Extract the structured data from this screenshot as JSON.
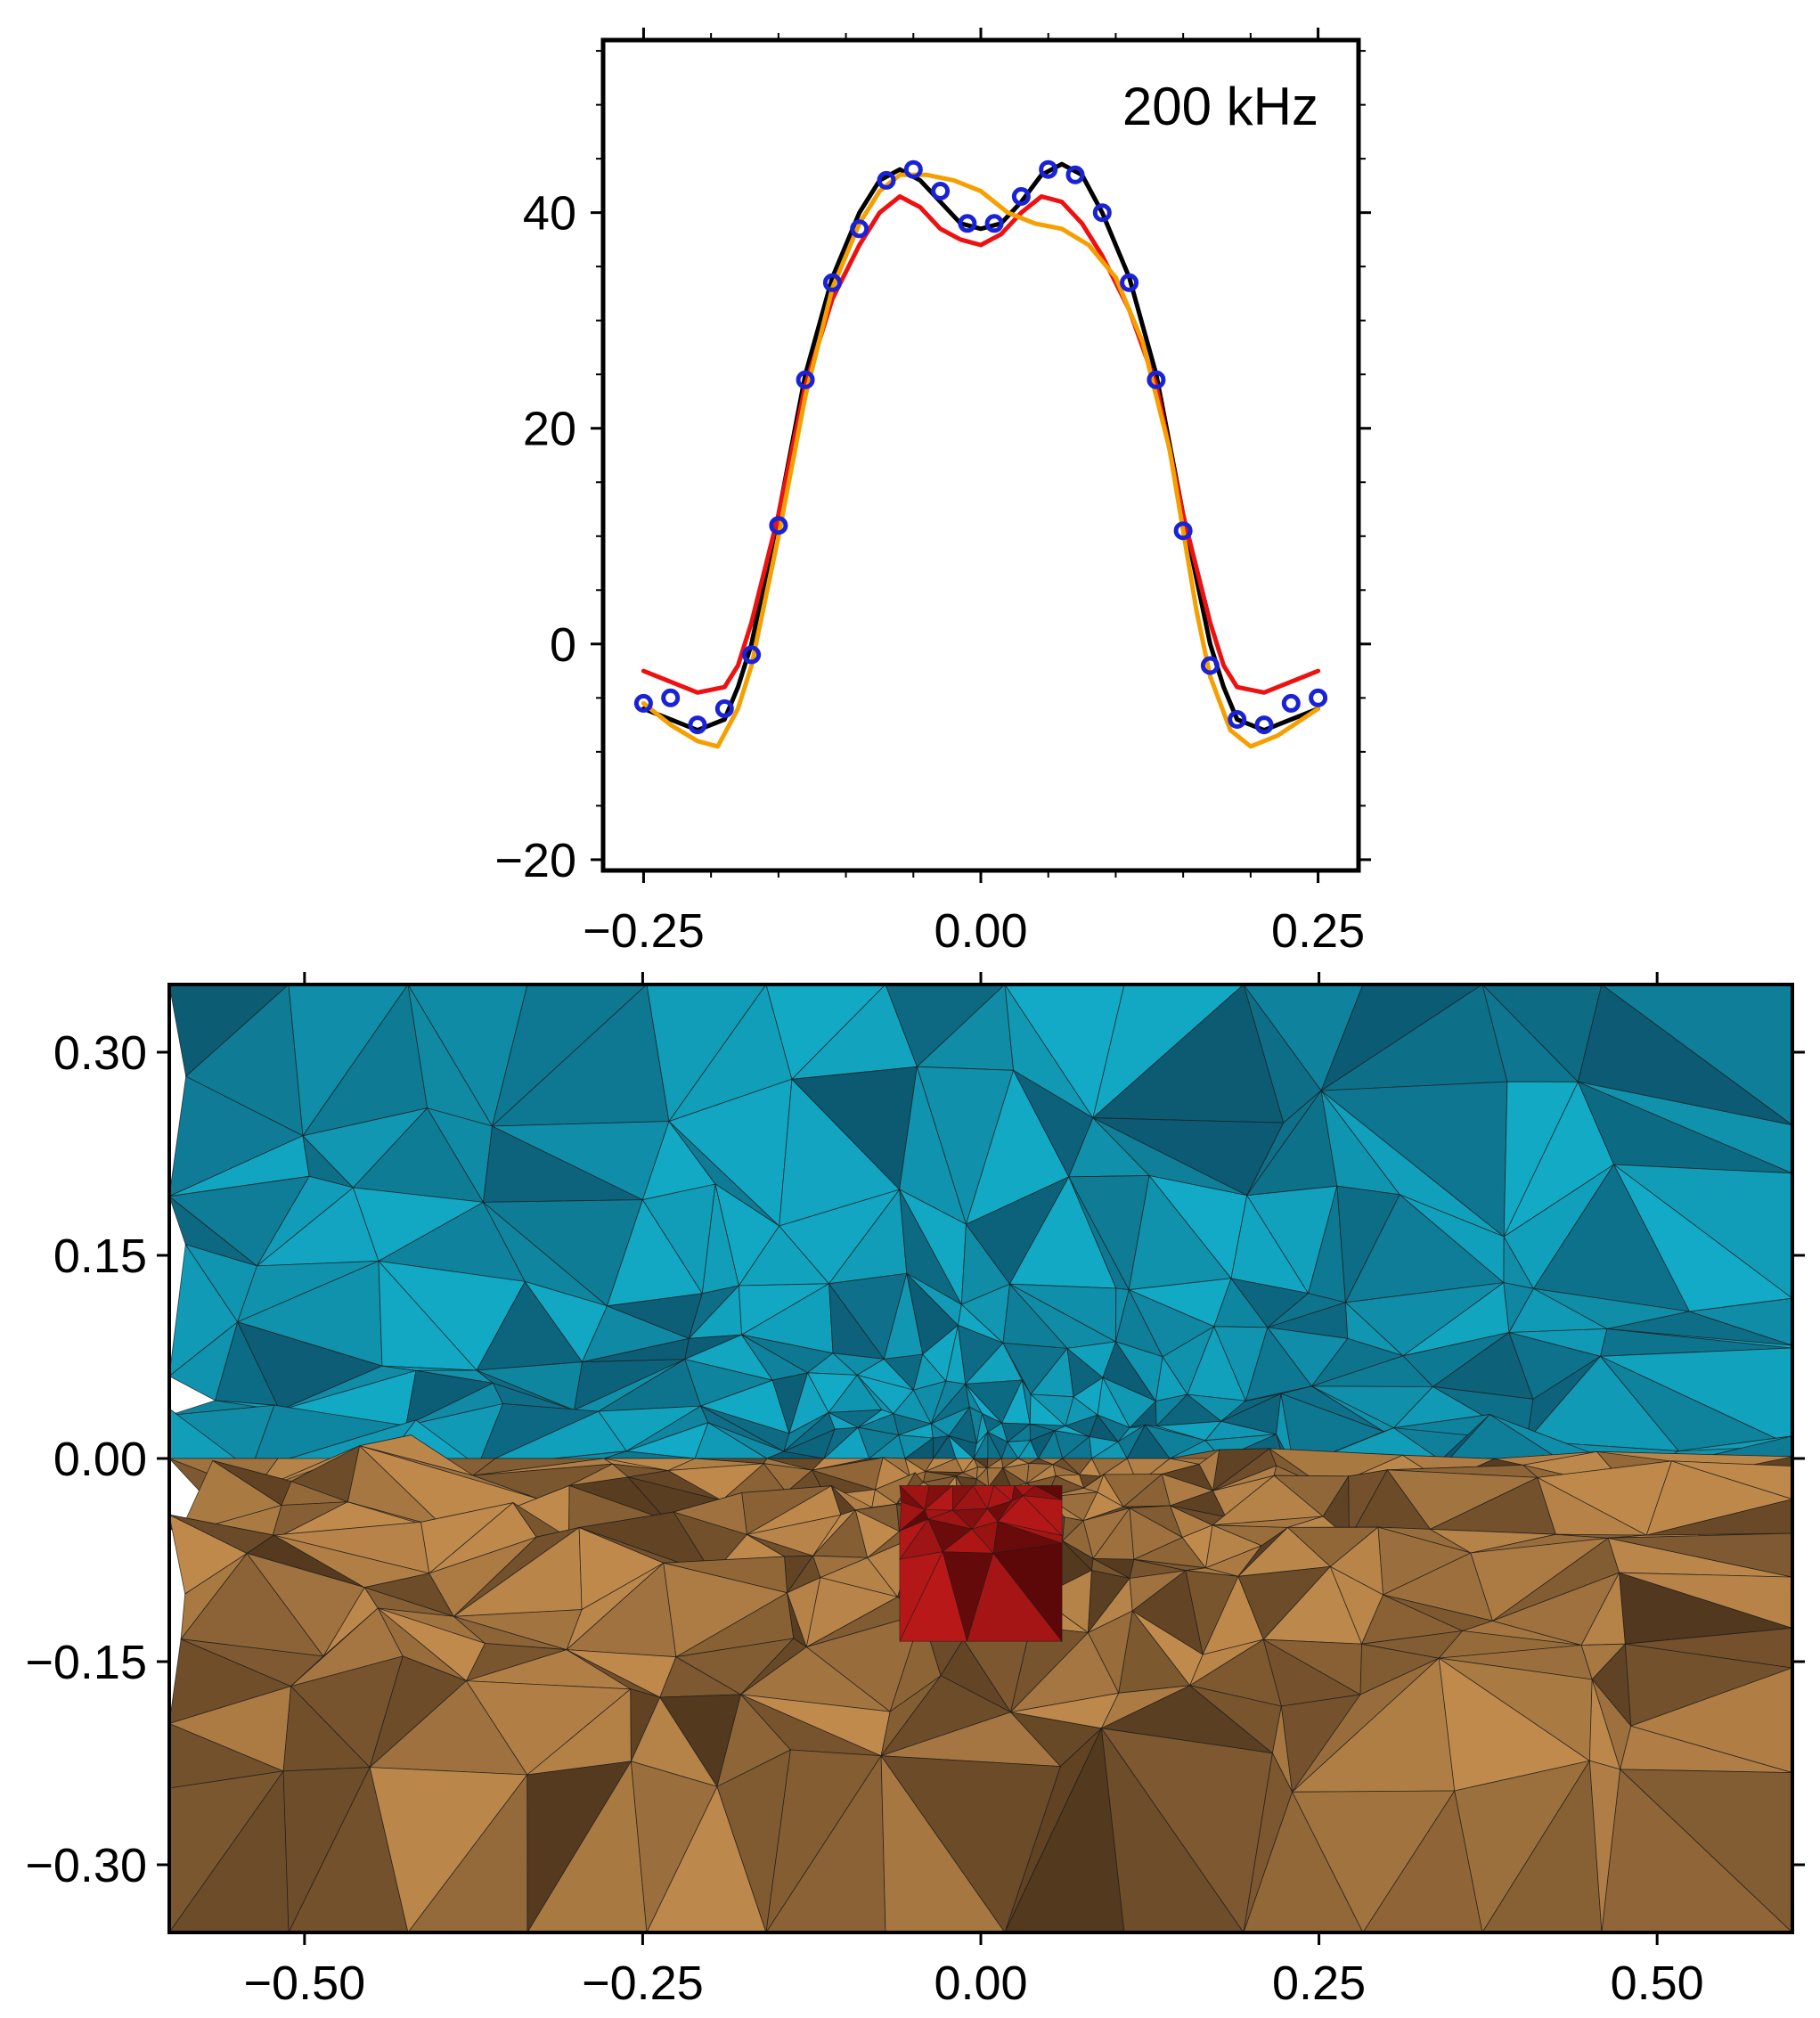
{
  "chart_data": [
    {
      "type": "line",
      "annotation": "200 kHz",
      "xlabel": "",
      "ylabel": "",
      "xlim": [
        -0.28,
        0.28
      ],
      "ylim": [
        -21,
        56
      ],
      "x_ticks": [
        -0.25,
        0.0,
        0.25
      ],
      "x_tick_labels": [
        "−0.25",
        "0.00",
        "0.25"
      ],
      "y_ticks": [
        -20,
        0,
        20,
        40
      ],
      "y_tick_labels": [
        "−20",
        "0",
        "20",
        "40"
      ],
      "grid": false,
      "series": [
        {
          "color": "#000000",
          "style": "line",
          "x": [
            -0.25,
            -0.23,
            -0.21,
            -0.19,
            -0.18,
            -0.17,
            -0.15,
            -0.13,
            -0.11,
            -0.09,
            -0.075,
            -0.06,
            -0.045,
            -0.03,
            -0.015,
            0.0,
            0.015,
            0.03,
            0.045,
            0.06,
            0.075,
            0.09,
            0.11,
            0.13,
            0.15,
            0.17,
            0.18,
            0.19,
            0.21,
            0.23,
            0.25
          ],
          "y": [
            -6,
            -7,
            -8,
            -7,
            -4,
            0,
            12,
            25,
            34,
            40,
            43,
            44,
            43,
            41,
            39,
            38.5,
            39,
            41,
            43.5,
            44.5,
            43.5,
            40,
            34,
            25,
            12,
            0,
            -4,
            -7,
            -8,
            -7,
            -6
          ]
        },
        {
          "color": "#ee1111",
          "style": "line",
          "x": [
            -0.25,
            -0.23,
            -0.21,
            -0.19,
            -0.18,
            -0.17,
            -0.15,
            -0.13,
            -0.11,
            -0.09,
            -0.075,
            -0.06,
            -0.045,
            -0.03,
            -0.015,
            0.0,
            0.015,
            0.03,
            0.045,
            0.06,
            0.075,
            0.09,
            0.11,
            0.13,
            0.15,
            0.17,
            0.18,
            0.19,
            0.21,
            0.23,
            0.25
          ],
          "y": [
            -2.5,
            -3.5,
            -4.5,
            -4,
            -2,
            2,
            12,
            24,
            32,
            37,
            40,
            41.5,
            40.5,
            38.5,
            37.5,
            37,
            38,
            40,
            41.5,
            41,
            39,
            36,
            31,
            24,
            12,
            2,
            -2,
            -4,
            -4.5,
            -3.5,
            -2.5
          ]
        },
        {
          "color": "#f5a000",
          "style": "line",
          "x": [
            -0.25,
            -0.23,
            -0.21,
            -0.195,
            -0.18,
            -0.17,
            -0.15,
            -0.13,
            -0.11,
            -0.09,
            -0.075,
            -0.06,
            -0.04,
            -0.02,
            0.0,
            0.02,
            0.04,
            0.06,
            0.08,
            0.1,
            0.12,
            0.14,
            0.16,
            0.17,
            0.185,
            0.2,
            0.22,
            0.25
          ],
          "y": [
            -5.5,
            -7.5,
            -9,
            -9.5,
            -6,
            -2,
            10,
            23,
            33,
            39,
            42,
            43.5,
            43.5,
            43,
            42,
            40,
            39,
            38.5,
            37,
            34,
            28,
            18,
            3,
            -3,
            -8,
            -9.5,
            -8.5,
            -6
          ]
        },
        {
          "color": "#1a22d6",
          "style": "markers",
          "marker": "circle",
          "x": [
            -0.25,
            -0.23,
            -0.21,
            -0.19,
            -0.17,
            -0.15,
            -0.13,
            -0.11,
            -0.09,
            -0.07,
            -0.05,
            -0.03,
            -0.01,
            0.01,
            0.03,
            0.05,
            0.07,
            0.09,
            0.11,
            0.13,
            0.15,
            0.17,
            0.19,
            0.21,
            0.23,
            0.25
          ],
          "y": [
            -5.5,
            -5,
            -7.5,
            -6,
            -1,
            11,
            24.5,
            33.5,
            38.5,
            43,
            44,
            42,
            39,
            39,
            41.5,
            44,
            43.5,
            40,
            33.5,
            24.5,
            10.5,
            -2,
            -7,
            -7.5,
            -5.5,
            -5
          ]
        }
      ]
    },
    {
      "type": "mesh",
      "xlabel": "",
      "ylabel": "",
      "xlim": [
        -0.6,
        0.6
      ],
      "ylim": [
        -0.35,
        0.35
      ],
      "x_ticks": [
        -0.5,
        -0.25,
        0.0,
        0.25,
        0.5
      ],
      "x_tick_labels": [
        "−0.50",
        "−0.25",
        "0.00",
        "0.25",
        "0.50"
      ],
      "y_ticks": [
        0.3,
        0.15,
        0.0,
        -0.15,
        -0.3
      ],
      "y_tick_labels": [
        "0.30",
        "0.15",
        "0.00",
        "−0.15",
        "−0.30"
      ],
      "grid": false,
      "regions": [
        {
          "name": "air",
          "y_range": [
            0.0,
            0.35
          ],
          "color": "#12aac6",
          "dark_color": "#0b4a62"
        },
        {
          "name": "ground",
          "y_range": [
            -0.35,
            0.0
          ],
          "color": "#c08a4c",
          "dark_color": "#3f2a16"
        },
        {
          "name": "anomaly",
          "x_range": [
            -0.06,
            0.06
          ],
          "y_range": [
            -0.135,
            -0.02
          ],
          "color": "#b81818",
          "dark_color": "#4a0505"
        }
      ]
    }
  ]
}
